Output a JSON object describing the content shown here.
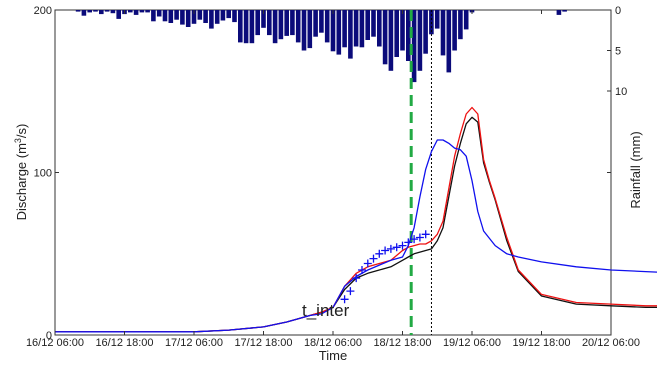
{
  "chart_data": {
    "type": "line",
    "xlabel": "Time",
    "ylabel": "Discharge (m3/s)",
    "ylabel_parts": {
      "base": "Discharge (m",
      "sup": "3",
      "tail": "/s)"
    },
    "y2label": "Rainfall (mm)",
    "xlim": [
      "2012-12-16 06:00",
      "2012-12-20 06:00"
    ],
    "ylim": [
      0,
      200
    ],
    "y2lim_inverted": [
      0,
      20
    ],
    "x_ticks": [
      "16/12 06:00",
      "16/12 18:00",
      "17/12 06:00",
      "17/12 18:00",
      "18/12 06:00",
      "18/12 18:00",
      "19/12 06:00",
      "19/12 18:00",
      "20/12 06:00"
    ],
    "y_ticks": [
      "0",
      "100",
      "200"
    ],
    "y2_ticks": [
      "0",
      "5",
      "10"
    ],
    "annotation": "t_inter",
    "vline_inter_hours": 61.5,
    "vline_peak_hours": 65,
    "grid": false,
    "colors": {
      "observed": "#1010ee",
      "marker": "#1010ee",
      "sim_red": "#ee1111",
      "sim_black": "#111111",
      "rain": "#0b0b7a",
      "inter_line": "#22aa44",
      "inter_text": "#22aa44",
      "peak_line": "#000000"
    },
    "rainfall": {
      "hours": [
        0,
        4,
        5,
        6,
        7,
        8,
        9,
        10,
        11,
        12,
        13,
        14,
        15,
        16,
        17,
        18,
        19,
        20,
        21,
        22,
        23,
        24,
        25,
        26,
        27,
        28,
        29,
        30,
        31,
        32,
        33,
        34,
        35,
        36,
        37,
        38,
        39,
        40,
        41,
        42,
        43,
        44,
        45,
        46,
        47,
        48,
        49,
        50,
        51,
        52,
        53,
        54,
        55,
        56,
        57,
        58,
        59,
        60,
        61,
        62,
        63,
        64,
        65,
        66,
        67,
        68,
        69,
        70,
        71,
        72,
        73,
        74,
        75,
        87,
        88
      ],
      "values_mm": [
        0,
        0.2,
        0.7,
        0.3,
        0.2,
        0.5,
        0.2,
        0.4,
        1.1,
        0.5,
        0.3,
        0.6,
        0.3,
        0.3,
        1.4,
        0.8,
        1.4,
        1.6,
        1.2,
        1.8,
        2.1,
        1.7,
        1.2,
        1.6,
        2.3,
        1.7,
        1.3,
        1.0,
        1.5,
        4.0,
        4.1,
        4.1,
        3.1,
        2.2,
        3.1,
        4.1,
        3.6,
        3.2,
        3.1,
        4.0,
        5.0,
        4.7,
        3.3,
        2.8,
        4.0,
        5.1,
        5.5,
        4.6,
        6.0,
        4.5,
        4.6,
        3.7,
        3.3,
        4.5,
        6.7,
        7.5,
        5.8,
        5.0,
        6.3,
        8.9,
        7.5,
        5.4,
        3.0,
        2.3,
        5.6,
        7.7,
        5.0,
        3.6,
        2.4,
        0.3,
        0,
        0,
        0,
        0.6,
        0.2
      ]
    },
    "series": [
      {
        "name": "observed",
        "x_hours": [
          0,
          6,
          12,
          18,
          24,
          30,
          36,
          40,
          42,
          44,
          46,
          48,
          50,
          52,
          54,
          56,
          58,
          60,
          61,
          62,
          63,
          64,
          65,
          66,
          67,
          68,
          69,
          70,
          71,
          72,
          73,
          74,
          76,
          78,
          80,
          84,
          90,
          96,
          102,
          108,
          114,
          120
        ],
        "values": [
          2,
          2,
          2,
          2,
          2,
          3,
          5,
          8,
          10,
          12,
          13,
          17,
          30,
          36,
          40,
          43,
          46,
          48,
          55,
          66,
          85,
          102,
          113,
          120,
          120,
          118,
          115,
          114,
          110,
          95,
          76,
          64,
          55,
          50,
          48,
          45,
          42,
          40,
          39,
          38,
          37,
          35
        ]
      },
      {
        "name": "observed_markers",
        "x_hours": [
          50,
          51,
          52,
          53,
          54,
          55,
          56,
          57,
          58,
          59,
          60,
          61,
          62,
          63,
          64
        ],
        "values": [
          22,
          27,
          35,
          40,
          44,
          47,
          50,
          52,
          53,
          54,
          55,
          57,
          59,
          60,
          62
        ]
      },
      {
        "name": "sim_red",
        "x_hours": [
          0,
          6,
          12,
          18,
          24,
          30,
          36,
          40,
          42,
          44,
          46,
          48,
          50,
          52,
          54,
          56,
          58,
          60,
          61,
          62,
          63,
          64,
          65,
          66,
          67,
          68,
          69,
          70,
          71,
          72,
          73,
          74,
          75,
          76,
          78,
          80,
          84,
          90,
          96,
          102,
          108,
          114,
          118,
          120
        ],
        "values": [
          2,
          2,
          2,
          2,
          2,
          3,
          5,
          8,
          10,
          12,
          14,
          17,
          30,
          38,
          42,
          44,
          46,
          52,
          54,
          55,
          56,
          56,
          58,
          62,
          70,
          90,
          110,
          124,
          136,
          140,
          136,
          108,
          95,
          84,
          60,
          40,
          25,
          20,
          19,
          18,
          18,
          18,
          20,
          16
        ]
      },
      {
        "name": "sim_black",
        "x_hours": [
          0,
          6,
          12,
          18,
          24,
          30,
          36,
          40,
          42,
          44,
          46,
          48,
          50,
          52,
          54,
          56,
          58,
          60,
          61,
          62,
          63,
          64,
          65,
          66,
          67,
          68,
          69,
          70,
          71,
          72,
          73,
          74,
          75,
          76,
          78,
          80,
          84,
          90,
          96,
          102,
          108,
          114,
          118,
          120
        ],
        "values": [
          2,
          2,
          2,
          2,
          2,
          3,
          5,
          8,
          10,
          12,
          14,
          17,
          28,
          35,
          38,
          40,
          42,
          46,
          48,
          50,
          51,
          52,
          53,
          58,
          66,
          85,
          104,
          118,
          130,
          134,
          131,
          106,
          94,
          83,
          58,
          39,
          24,
          19,
          18,
          17,
          17,
          17,
          19,
          15
        ]
      }
    ]
  }
}
